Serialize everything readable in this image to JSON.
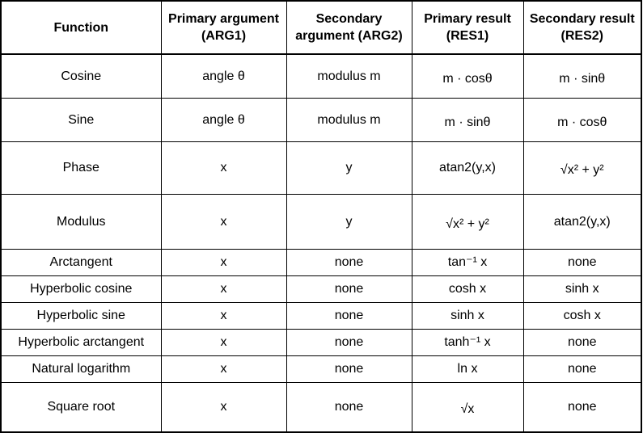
{
  "headers": [
    "Function",
    "Primary argument (ARG1)",
    "Secondary argument (ARG2)",
    "Primary result (RES1)",
    "Secondary result (RES2)"
  ],
  "rows": [
    {
      "function": "Cosine",
      "arg1": "angle θ",
      "arg2": "modulus m",
      "res1": "m · cosθ",
      "res2": "m · sinθ"
    },
    {
      "function": "Sine",
      "arg1": "angle θ",
      "arg2": "modulus m",
      "res1": "m · sinθ",
      "res2": "m · cosθ"
    },
    {
      "function": "Phase",
      "arg1": "x",
      "arg2": "y",
      "res1": "atan2(y,x)",
      "res2": "√x² + y²"
    },
    {
      "function": "Modulus",
      "arg1": "x",
      "arg2": "y",
      "res1": "√x² + y²",
      "res2": "atan2(y,x)"
    },
    {
      "function": "Arctangent",
      "arg1": "x",
      "arg2": "none",
      "res1": "tan⁻¹ x",
      "res2": "none"
    },
    {
      "function": "Hyperbolic cosine",
      "arg1": "x",
      "arg2": "none",
      "res1": "cosh x",
      "res2": "sinh x"
    },
    {
      "function": "Hyperbolic sine",
      "arg1": "x",
      "arg2": "none",
      "res1": "sinh x",
      "res2": "cosh x"
    },
    {
      "function": "Hyperbolic arctangent",
      "arg1": "x",
      "arg2": "none",
      "res1": "tanh⁻¹ x",
      "res2": "none"
    },
    {
      "function": "Natural logarithm",
      "arg1": "x",
      "arg2": "none",
      "res1": "ln x",
      "res2": "none"
    },
    {
      "function": "Square root",
      "arg1": "x",
      "arg2": "none",
      "res1": "√x",
      "res2": "none"
    }
  ]
}
